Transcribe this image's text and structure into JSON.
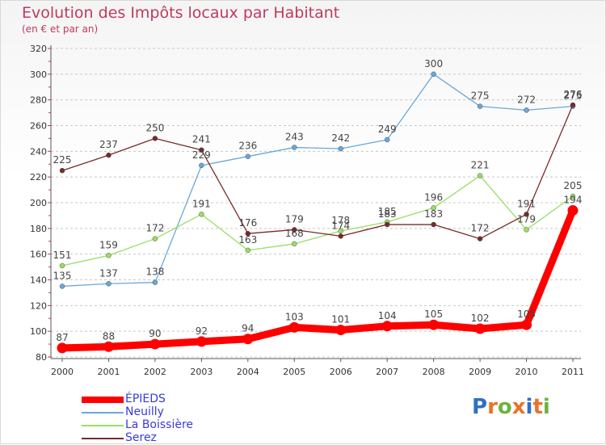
{
  "title": "Evolution des Impôts locaux par Habitant",
  "subtitle": "(en € et par an)",
  "logo_letters": [
    "P",
    "r",
    "o",
    "x",
    "i",
    "t",
    "i"
  ],
  "logo_colors": [
    "#2f6fc6",
    "#e8732a",
    "#6db33f",
    "#e8732a",
    "#2f6fc6",
    "#e8732a",
    "#6db33f"
  ],
  "chart_data": {
    "type": "line",
    "title": "Evolution des Impôts locaux par Habitant",
    "subtitle": "(en € et par an)",
    "xlabel": "",
    "ylabel": "",
    "categories": [
      "2000",
      "2001",
      "2002",
      "2003",
      "2004",
      "2005",
      "2006",
      "2007",
      "2008",
      "2009",
      "2010",
      "2011"
    ],
    "ylim": [
      80,
      320
    ],
    "yticks": [
      80,
      100,
      120,
      140,
      160,
      180,
      200,
      220,
      240,
      260,
      280,
      300,
      320
    ],
    "grid": "horizontal-dashed",
    "legend_position": "bottom-left",
    "series": [
      {
        "name": "ÉPIEDS",
        "color": "#ff0000",
        "emphasis": "thick",
        "values": [
          87,
          88,
          90,
          92,
          94,
          103,
          101,
          104,
          105,
          102,
          105,
          194
        ],
        "labels": [
          "87",
          "88",
          "90",
          "92",
          "94",
          "103",
          "101",
          "104",
          "105",
          "102",
          "105",
          "194"
        ]
      },
      {
        "name": "Neuilly",
        "color": "#6aa8d8",
        "emphasis": "thin",
        "values": [
          135,
          137,
          138,
          229,
          236,
          243,
          242,
          249,
          300,
          275,
          272,
          275
        ],
        "labels": [
          "135",
          "137",
          "138",
          "229",
          "236",
          "243",
          "242",
          "249",
          "300",
          "275",
          "272",
          "275"
        ]
      },
      {
        "name": "La Boissière",
        "color": "#99dd66",
        "emphasis": "thin",
        "values": [
          151,
          159,
          172,
          191,
          163,
          168,
          178,
          185,
          196,
          221,
          179,
          205
        ],
        "labels": [
          "151",
          "159",
          "172",
          "191",
          "163",
          "168",
          "178",
          "185",
          "196",
          "221",
          "179",
          "205"
        ]
      },
      {
        "name": "Serez",
        "color": "#7a2a2a",
        "emphasis": "thin",
        "values": [
          225,
          237,
          250,
          241,
          176,
          179,
          174,
          183,
          183,
          172,
          191,
          276
        ],
        "labels": [
          "225",
          "237",
          "250",
          "241",
          "176",
          "179",
          "174",
          "183",
          "183",
          "172",
          "191",
          "276"
        ]
      }
    ]
  }
}
